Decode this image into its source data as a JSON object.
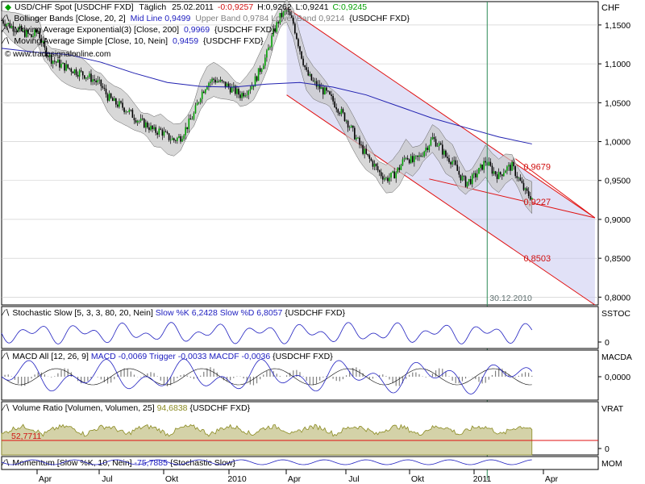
{
  "header": {
    "symbol": "USD/CHF Spot [USDCHF FXD]",
    "period": "Täglich",
    "date": "25.02.2011",
    "change": "-0:0,9257",
    "high": "H:0,9262",
    "low": "L:0,9241",
    "close": "C:0,9245"
  },
  "main_legend": [
    {
      "label": "Bollinger Bands [Close, 20, 2]",
      "value_text": "Mid Line 0,9499",
      "extra": "Upper Band 0,9784 Lower Band 0,9214",
      "tail": "{USDCHF FXD}"
    },
    {
      "label": "Moving Average Exponential(3) [Close, 200]",
      "value_text": "0,9969",
      "extra": "",
      "tail": "{USDCHF FXD}"
    },
    {
      "label": "Moving Average Simple [Close, 10, Nein]",
      "value_text": "0,9459",
      "extra": "",
      "tail": "{USDCHF FXD}"
    }
  ],
  "watermark": "© www.tradesignalonline.com",
  "colors": {
    "grid": "#c8c8c8",
    "up_candle": "#00a000",
    "down_candle": "#000000",
    "band_fill": "#c8c8c8",
    "ema": "#2020b0",
    "channel_line": "#e01010",
    "channel_fill": "#c8c8f0",
    "marker_line": "#2e8b57",
    "stoch": "#2020c0",
    "macd_hist": "#808080",
    "volume_fill": "#d4d2a8",
    "volume_line": "#8a8a20",
    "red_text": "#d01010"
  },
  "chart_data": {
    "type": "candlestick",
    "instrument": "USD/CHF Spot",
    "x_ticks": [
      "Apr",
      "Jul",
      "Okt",
      "2010",
      "Apr",
      "Jul",
      "Okt",
      "2011",
      "Apr"
    ],
    "y_axis_label": "CHF",
    "y_ticks": [
      "1,1500",
      "1,1000",
      "1,0500",
      "1,0000",
      "0,9500",
      "0,9000",
      "0,8500",
      "0,8000"
    ],
    "ylim": [
      0.79,
      1.18
    ],
    "price_path": [
      [
        0,
        1.156
      ],
      [
        6,
        1.148
      ],
      [
        12,
        1.142
      ],
      [
        18,
        1.135
      ],
      [
        22,
        1.142
      ],
      [
        26,
        1.118
      ],
      [
        30,
        1.106
      ],
      [
        36,
        1.098
      ],
      [
        42,
        1.093
      ],
      [
        50,
        1.086
      ],
      [
        56,
        1.079
      ],
      [
        60,
        1.072
      ],
      [
        64,
        1.058
      ],
      [
        68,
        1.05
      ],
      [
        72,
        1.046
      ],
      [
        76,
        1.04
      ],
      [
        80,
        1.032
      ],
      [
        84,
        1.025
      ],
      [
        88,
        1.021
      ],
      [
        92,
        1.013
      ],
      [
        96,
        1.014
      ],
      [
        100,
        1.006
      ],
      [
        104,
        1.002
      ],
      [
        108,
        1.006
      ],
      [
        112,
        1.02
      ],
      [
        116,
        1.035
      ],
      [
        120,
        1.06
      ],
      [
        124,
        1.075
      ],
      [
        128,
        1.08
      ],
      [
        132,
        1.076
      ],
      [
        136,
        1.072
      ],
      [
        140,
        1.066
      ],
      [
        144,
        1.06
      ],
      [
        148,
        1.066
      ],
      [
        152,
        1.075
      ],
      [
        156,
        1.093
      ],
      [
        160,
        1.112
      ],
      [
        164,
        1.14
      ],
      [
        168,
        1.16
      ],
      [
        172,
        1.168
      ],
      [
        176,
        1.152
      ],
      [
        180,
        1.118
      ],
      [
        184,
        1.088
      ],
      [
        188,
        1.076
      ],
      [
        192,
        1.069
      ],
      [
        196,
        1.062
      ],
      [
        200,
        1.052
      ],
      [
        204,
        1.04
      ],
      [
        208,
        1.028
      ],
      [
        212,
        1.012
      ],
      [
        216,
        0.996
      ],
      [
        220,
        0.982
      ],
      [
        224,
        0.972
      ],
      [
        228,
        0.96
      ],
      [
        232,
        0.952
      ],
      [
        236,
        0.956
      ],
      [
        240,
        0.966
      ],
      [
        244,
        0.982
      ],
      [
        248,
        0.974
      ],
      [
        252,
        0.98
      ],
      [
        256,
        0.992
      ],
      [
        260,
        1.004
      ],
      [
        264,
        0.995
      ],
      [
        268,
        0.981
      ],
      [
        272,
        0.975
      ],
      [
        276,
        0.958
      ],
      [
        280,
        0.947
      ],
      [
        284,
        0.952
      ],
      [
        288,
        0.962
      ],
      [
        292,
        0.975
      ],
      [
        296,
        0.963
      ],
      [
        300,
        0.956
      ],
      [
        304,
        0.965
      ],
      [
        308,
        0.968
      ],
      [
        312,
        0.952
      ],
      [
        316,
        0.935
      ],
      [
        320,
        0.928
      ]
    ],
    "ema_path": [
      [
        0,
        1.12
      ],
      [
        20,
        1.115
      ],
      [
        40,
        1.112
      ],
      [
        60,
        1.102
      ],
      [
        80,
        1.088
      ],
      [
        100,
        1.076
      ],
      [
        120,
        1.071
      ],
      [
        140,
        1.07
      ],
      [
        160,
        1.074
      ],
      [
        180,
        1.076
      ],
      [
        200,
        1.07
      ],
      [
        220,
        1.06
      ],
      [
        240,
        1.045
      ],
      [
        260,
        1.03
      ],
      [
        280,
        1.018
      ],
      [
        300,
        1.006
      ],
      [
        320,
        0.997
      ]
    ],
    "channel": {
      "upper_start": [
        172,
        1.172
      ],
      "upper_end": [
        358,
        0.902
      ],
      "lower_start": [
        172,
        1.06
      ],
      "lower_end": [
        358,
        0.79
      ],
      "support_start": [
        258,
        0.952
      ],
      "support_end": [
        358,
        0.902
      ],
      "resistance_start": [
        310,
        0.978
      ],
      "resistance_end": [
        358,
        0.902
      ]
    },
    "annotations": [
      {
        "text": "0,9679",
        "value": 0.9679
      },
      {
        "text": "0,9227",
        "value": 0.9227
      },
      {
        "text": "0,8503",
        "value": 0.8503
      }
    ],
    "marker": {
      "label": "30.12.2010",
      "x": 293
    },
    "panels": [
      {
        "name": "Stochastic Slow",
        "legend": "Stochastic Slow [5, 3, 3, 80, 20, Nein]",
        "values_text": "Slow %K 6,2428 Slow %D 6,8057",
        "tail": "{USDCHF FXD}",
        "axis_label": "SSTOC",
        "ticks": [
          "0"
        ]
      },
      {
        "name": "MACD All",
        "legend": "MACD All [12, 26, 9]",
        "values_text": "MACD -0,0069 Trigger -0,0033 MACDF -0,0036",
        "tail": "{USDCHF FXD}",
        "axis_label": "MACDA",
        "ticks": [
          "0,0000"
        ]
      },
      {
        "name": "Volume Ratio",
        "legend": "Volume Ratio [Volumen, Volumen, 25]",
        "values_text": "94,6838",
        "tail": "{USDCHF FXD}",
        "axis_label": "VRAT",
        "ticks": [
          "0"
        ],
        "level_text": "52,7711"
      },
      {
        "name": "Momentum",
        "legend": "Momentum [Slow %K, 10, Nein]",
        "values_text": "-75,7885",
        "tail": "{Stochastic Slow}",
        "axis_label": "MOM",
        "ticks": []
      }
    ]
  }
}
